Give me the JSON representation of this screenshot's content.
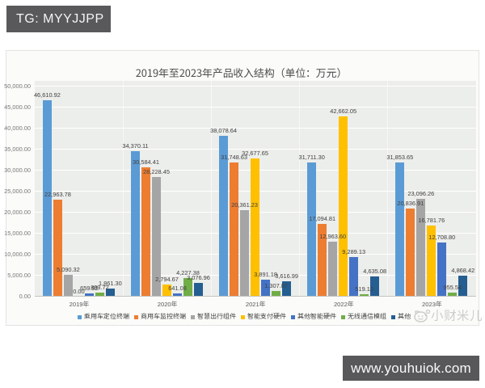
{
  "overlay": {
    "badge_text": "TG: MYYJJPP",
    "url_bar_text": "www.youhuiok.com",
    "watermark_text": "小财米儿"
  },
  "chart_data": {
    "type": "bar",
    "title": "2019年至2023年产品收入结构（单位：万元）",
    "categories": [
      "2019年",
      "2020年",
      "2021年",
      "2022年",
      "2023年"
    ],
    "series": [
      {
        "name": "乘用车定位终端",
        "color": "#5B9BD5",
        "values": [
          46610.92,
          34370.11,
          38078.64,
          31711.3,
          31853.65
        ]
      },
      {
        "name": "商用车监控终端",
        "color": "#ED7D31",
        "values": [
          22963.78,
          30584.41,
          31748.63,
          17094.81,
          20836.91
        ]
      },
      {
        "name": "智慧出行组件",
        "color": "#A5A5A5",
        "values": [
          5090.32,
          28228.45,
          20361.23,
          12963.6,
          23096.26
        ]
      },
      {
        "name": "智能支付硬件",
        "color": "#FFC000",
        "values": [
          0.0,
          2794.67,
          32677.65,
          42662.05,
          16781.76
        ]
      },
      {
        "name": "其他智能硬件",
        "color": "#4472C4",
        "values": [
          659.92,
          641.08,
          3891.18,
          9289.13,
          12708.8
        ]
      },
      {
        "name": "无线通信模组",
        "color": "#70AD47",
        "values": [
          893.72,
          4227.38,
          1307.87,
          519.12,
          955.54
        ]
      },
      {
        "name": "其他",
        "color": "#255E91",
        "values": [
          1861.3,
          3076.96,
          3616.99,
          4635.08,
          4868.42
        ]
      }
    ],
    "ylim": [
      0,
      50000
    ],
    "ytick_step": 5000,
    "grid": true,
    "legend_position": "bottom",
    "data_labels": true
  }
}
